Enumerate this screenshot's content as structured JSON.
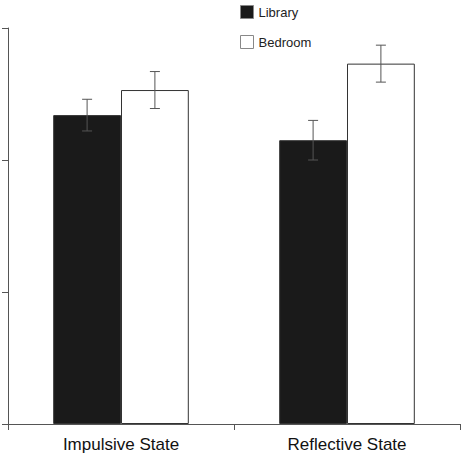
{
  "chart_data": {
    "type": "bar",
    "categories": [
      "Impulsive State",
      "Reflective State"
    ],
    "series": [
      {
        "name": "Library",
        "color": "#1a1a1a",
        "values": [
          2.34,
          2.15
        ],
        "errors": [
          0.12,
          0.15
        ]
      },
      {
        "name": "Bedroom",
        "color": "#ffffff",
        "values": [
          2.53,
          2.73
        ],
        "errors": [
          0.14,
          0.14
        ]
      }
    ],
    "ylim": [
      0,
      3
    ],
    "yticks": [
      0,
      1,
      2,
      3
    ],
    "grid": false,
    "legend": "top",
    "tick_labels": "x"
  }
}
